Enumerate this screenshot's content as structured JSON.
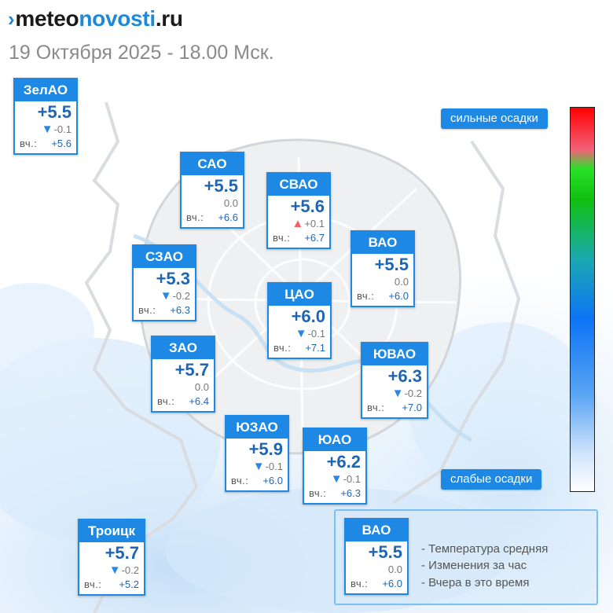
{
  "header": {
    "logo_main": "meteo",
    "logo_accent": "novosti",
    "logo_tld": ".ru",
    "date": "19 Октября 2025 - 18.00 Мск."
  },
  "districts": [
    {
      "id": "zelao",
      "name": "ЗелАО",
      "temp": "+5.5",
      "change": "-0.1",
      "trend": "down",
      "yesterday_label": "вч.:",
      "yesterday": "+5.6"
    },
    {
      "id": "sao",
      "name": "САО",
      "temp": "+5.5",
      "change": "0.0",
      "trend": "none",
      "yesterday_label": "вч.:",
      "yesterday": "+6.6"
    },
    {
      "id": "svao",
      "name": "СВАО",
      "temp": "+5.6",
      "change": "+0.1",
      "trend": "up",
      "yesterday_label": "вч.:",
      "yesterday": "+6.7"
    },
    {
      "id": "vao",
      "name": "ВАО",
      "temp": "+5.5",
      "change": "0.0",
      "trend": "none",
      "yesterday_label": "вч.:",
      "yesterday": "+6.0"
    },
    {
      "id": "szao",
      "name": "СЗАО",
      "temp": "+5.3",
      "change": "-0.2",
      "trend": "down",
      "yesterday_label": "вч.:",
      "yesterday": "+6.3"
    },
    {
      "id": "cao",
      "name": "ЦАО",
      "temp": "+6.0",
      "change": "-0.1",
      "trend": "down",
      "yesterday_label": "вч.:",
      "yesterday": "+7.1"
    },
    {
      "id": "zao",
      "name": "ЗАО",
      "temp": "+5.7",
      "change": "0.0",
      "trend": "none",
      "yesterday_label": "вч.:",
      "yesterday": "+6.4"
    },
    {
      "id": "yuvao",
      "name": "ЮВАО",
      "temp": "+6.3",
      "change": "-0.2",
      "trend": "down",
      "yesterday_label": "вч.:",
      "yesterday": "+7.0"
    },
    {
      "id": "yuzao",
      "name": "ЮЗАО",
      "temp": "+5.9",
      "change": "-0.1",
      "trend": "down",
      "yesterday_label": "вч.:",
      "yesterday": "+6.0"
    },
    {
      "id": "yuao",
      "name": "ЮАО",
      "temp": "+6.2",
      "change": "-0.1",
      "trend": "down",
      "yesterday_label": "вч.:",
      "yesterday": "+6.3"
    },
    {
      "id": "troitsk",
      "name": "Троицк",
      "temp": "+5.7",
      "change": "-0.2",
      "trend": "down",
      "yesterday_label": "вч.:",
      "yesterday": "+5.2"
    }
  ],
  "scale": {
    "top_label": "сильные осадки",
    "bottom_label": "слабые осадки"
  },
  "legend": {
    "sample": {
      "name": "ВАО",
      "temp": "+5.5",
      "change": "0.0",
      "trend": "none",
      "yesterday_label": "вч.:",
      "yesterday": "+6.0"
    },
    "items": [
      "- Температура средняя",
      "- Изменения за час",
      "- Вчера в это время"
    ]
  },
  "icons": {
    "logo_mark": "brand-arrows-icon",
    "trend_down": "triangle-down-icon",
    "trend_up": "triangle-up-icon"
  },
  "colors": {
    "card_blue": "#1e88e5",
    "temp_blue": "#1e66b4",
    "trend_down": "#2b86e0",
    "trend_up": "#ee6464",
    "precip_light": "#dbeefc"
  }
}
